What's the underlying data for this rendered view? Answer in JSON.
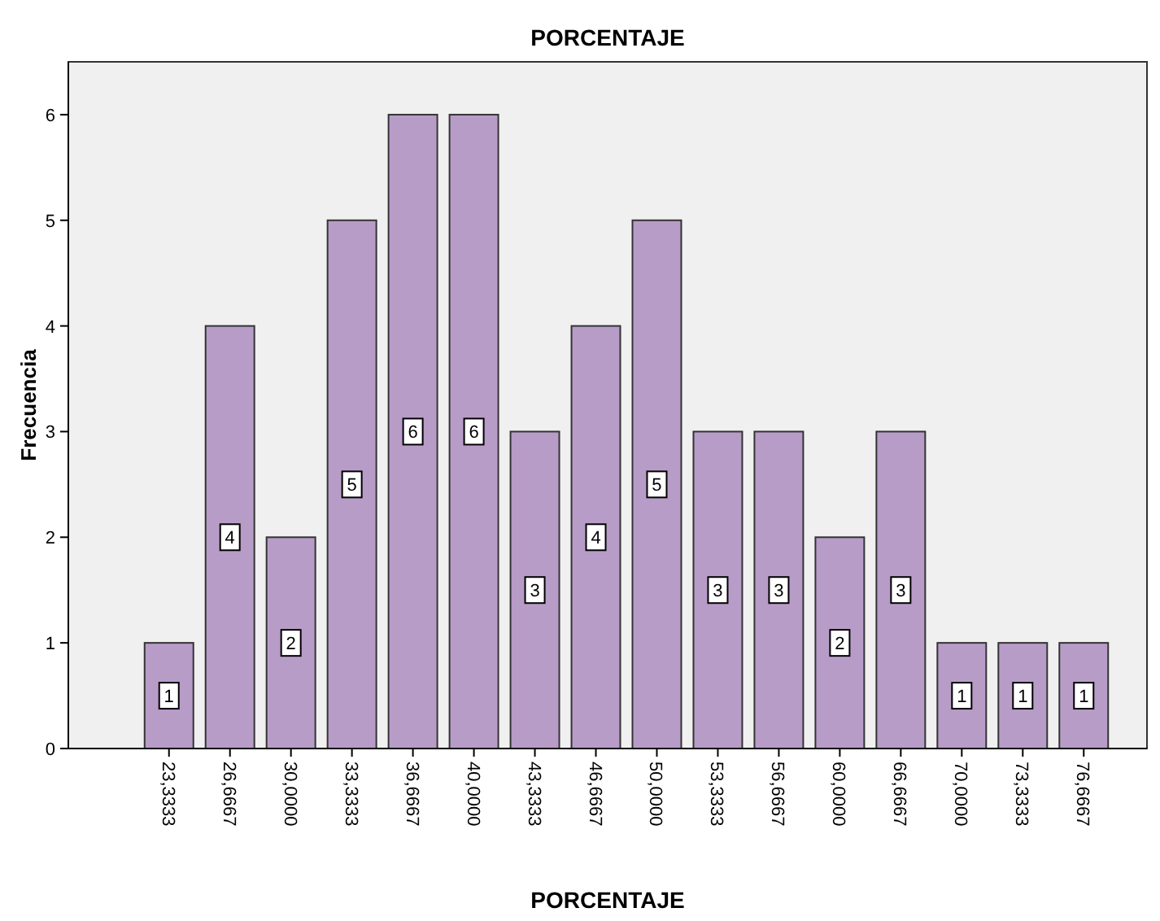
{
  "chart_data": {
    "type": "bar",
    "title": "PORCENTAJE",
    "xlabel": "PORCENTAJE",
    "ylabel": "Frecuencia",
    "categories": [
      "23,3333",
      "26,6667",
      "30,0000",
      "33,3333",
      "36,6667",
      "40,0000",
      "43,3333",
      "46,6667",
      "50,0000",
      "53,3333",
      "56,6667",
      "60,0000",
      "66,6667",
      "70,0000",
      "73,3333",
      "76,6667"
    ],
    "values": [
      1,
      4,
      2,
      5,
      6,
      6,
      3,
      4,
      5,
      3,
      3,
      2,
      3,
      1,
      1,
      1
    ],
    "color": "#b89cc8",
    "ylim": [
      0,
      6.5
    ],
    "yticks": [
      0,
      1,
      2,
      3,
      4,
      5,
      6
    ],
    "data_labels": true,
    "grid": false
  }
}
